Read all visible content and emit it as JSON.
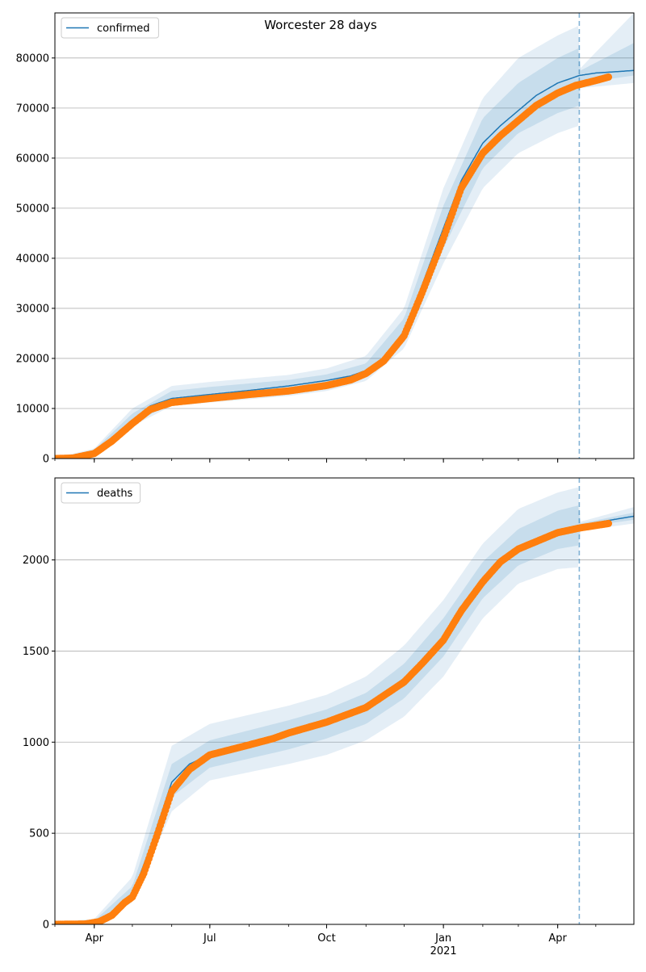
{
  "title": "Worcester 28 days",
  "colors": {
    "fit_line": "#1f77b4",
    "band": "#1f77b4",
    "observed": "#ff7f0e",
    "grid": "#b0b0b0",
    "vline": "#1f77b4"
  },
  "chart_data": [
    {
      "type": "line",
      "panel": "top",
      "legend": {
        "label": "confirmed",
        "placement": "upper-left"
      },
      "x_axis": {
        "min": "2020-03-01",
        "max": "2021-05-31",
        "ticks": [
          "Apr",
          "Jul",
          "Oct",
          "Jan",
          "Apr"
        ],
        "tick_dates": [
          "2020-04-01",
          "2020-07-01",
          "2020-10-01",
          "2021-01-01",
          "2021-04-01"
        ]
      },
      "y_axis": {
        "min": 0,
        "max": 89000,
        "ticks": [
          0,
          10000,
          20000,
          30000,
          40000,
          50000,
          60000,
          70000,
          80000
        ]
      },
      "grid": "y",
      "vline_date": "2021-04-18",
      "fit": [
        [
          "2020-03-01",
          0
        ],
        [
          "2020-03-20",
          500
        ],
        [
          "2020-04-01",
          1400
        ],
        [
          "2020-04-15",
          4000
        ],
        [
          "2020-05-01",
          7500
        ],
        [
          "2020-05-15",
          10500
        ],
        [
          "2020-06-01",
          12000
        ],
        [
          "2020-07-01",
          12800
        ],
        [
          "2020-08-01",
          13600
        ],
        [
          "2020-09-01",
          14500
        ],
        [
          "2020-10-01",
          15600
        ],
        [
          "2020-10-20",
          16500
        ],
        [
          "2020-11-01",
          17600
        ],
        [
          "2020-11-15",
          20000
        ],
        [
          "2020-12-01",
          25500
        ],
        [
          "2020-12-15",
          34500
        ],
        [
          "2021-01-01",
          46000
        ],
        [
          "2021-01-15",
          55500
        ],
        [
          "2021-02-01",
          63000
        ],
        [
          "2021-02-15",
          66500
        ],
        [
          "2021-03-01",
          69500
        ],
        [
          "2021-03-15",
          72500
        ],
        [
          "2021-04-01",
          75000
        ],
        [
          "2021-04-18",
          76500
        ],
        [
          "2021-05-01",
          77000
        ],
        [
          "2021-05-31",
          77500
        ]
      ],
      "band_ranges": {
        "outer_low": [
          [
            "2020-03-01",
            0
          ],
          [
            "2020-04-01",
            1000
          ],
          [
            "2020-05-01",
            6500
          ],
          [
            "2020-06-01",
            10500
          ],
          [
            "2020-07-01",
            11200
          ],
          [
            "2020-09-01",
            12500
          ],
          [
            "2020-10-01",
            13500
          ],
          [
            "2020-11-01",
            15500
          ],
          [
            "2020-12-01",
            22000
          ],
          [
            "2021-01-01",
            39000
          ],
          [
            "2021-02-01",
            54000
          ],
          [
            "2021-03-01",
            61000
          ],
          [
            "2021-04-01",
            65000
          ],
          [
            "2021-04-18",
            66500
          ],
          [
            "2021-04-19",
            74000
          ],
          [
            "2021-05-31",
            75000
          ]
        ],
        "outer_high": [
          [
            "2020-03-01",
            100
          ],
          [
            "2020-04-01",
            2000
          ],
          [
            "2020-05-01",
            10000
          ],
          [
            "2020-06-01",
            14500
          ],
          [
            "2020-07-01",
            15300
          ],
          [
            "2020-09-01",
            16700
          ],
          [
            "2020-10-01",
            18000
          ],
          [
            "2020-11-01",
            20500
          ],
          [
            "2020-12-01",
            30000
          ],
          [
            "2021-01-01",
            54000
          ],
          [
            "2021-02-01",
            72000
          ],
          [
            "2021-03-01",
            80000
          ],
          [
            "2021-04-01",
            84500
          ],
          [
            "2021-04-18",
            86500
          ],
          [
            "2021-04-19",
            78000
          ],
          [
            "2021-05-31",
            89000
          ]
        ],
        "mid_low": [
          [
            "2020-03-01",
            0
          ],
          [
            "2020-04-01",
            1150
          ],
          [
            "2020-05-01",
            7000
          ],
          [
            "2020-06-01",
            11000
          ],
          [
            "2020-07-01",
            11800
          ],
          [
            "2020-09-01",
            13300
          ],
          [
            "2020-10-01",
            14300
          ],
          [
            "2020-11-01",
            16400
          ],
          [
            "2020-12-01",
            23500
          ],
          [
            "2021-01-01",
            42000
          ],
          [
            "2021-02-01",
            58000
          ],
          [
            "2021-03-01",
            65000
          ],
          [
            "2021-04-01",
            69000
          ],
          [
            "2021-04-18",
            70500
          ],
          [
            "2021-04-19",
            75000
          ],
          [
            "2021-05-31",
            76500
          ]
        ],
        "mid_high": [
          [
            "2020-03-01",
            50
          ],
          [
            "2020-04-01",
            1750
          ],
          [
            "2020-05-01",
            9000
          ],
          [
            "2020-06-01",
            13500
          ],
          [
            "2020-07-01",
            14300
          ],
          [
            "2020-09-01",
            15700
          ],
          [
            "2020-10-01",
            16800
          ],
          [
            "2020-11-01",
            19000
          ],
          [
            "2020-12-01",
            28000
          ],
          [
            "2021-01-01",
            50500
          ],
          [
            "2021-02-01",
            68000
          ],
          [
            "2021-03-01",
            75000
          ],
          [
            "2021-04-01",
            80000
          ],
          [
            "2021-04-18",
            82000
          ],
          [
            "2021-04-19",
            77500
          ],
          [
            "2021-05-31",
            83000
          ]
        ]
      },
      "observed_range": {
        "start": "2020-03-01",
        "end": "2021-05-11"
      },
      "observed_anchors": [
        [
          "2020-03-01",
          0
        ],
        [
          "2020-03-15",
          100
        ],
        [
          "2020-04-01",
          1000
        ],
        [
          "2020-04-15",
          3500
        ],
        [
          "2020-05-01",
          7000
        ],
        [
          "2020-05-15",
          9800
        ],
        [
          "2020-06-01",
          11200
        ],
        [
          "2020-07-01",
          12000
        ],
        [
          "2020-08-01",
          12800
        ],
        [
          "2020-09-01",
          13500
        ],
        [
          "2020-10-01",
          14600
        ],
        [
          "2020-10-20",
          15700
        ],
        [
          "2020-11-01",
          17000
        ],
        [
          "2020-11-15",
          19500
        ],
        [
          "2020-12-01",
          24500
        ],
        [
          "2020-12-15",
          33000
        ],
        [
          "2021-01-01",
          44000
        ],
        [
          "2021-01-15",
          54000
        ],
        [
          "2021-02-01",
          61000
        ],
        [
          "2021-02-15",
          64500
        ],
        [
          "2021-03-01",
          67500
        ],
        [
          "2021-03-15",
          70500
        ],
        [
          "2021-04-01",
          73000
        ],
        [
          "2021-04-15",
          74500
        ],
        [
          "2021-05-01",
          75500
        ],
        [
          "2021-05-11",
          76200
        ]
      ]
    },
    {
      "type": "line",
      "panel": "bottom",
      "legend": {
        "label": "deaths",
        "placement": "upper-left"
      },
      "x_axis": {
        "min": "2020-03-01",
        "max": "2021-05-31",
        "ticks": [
          "Apr",
          "Jul",
          "Oct",
          "Jan",
          "Apr"
        ],
        "tick_dates": [
          "2020-04-01",
          "2020-07-01",
          "2020-10-01",
          "2021-01-01",
          "2021-04-01"
        ],
        "year_label": "2021"
      },
      "y_axis": {
        "min": 0,
        "max": 2450,
        "ticks": [
          0,
          500,
          1000,
          1500,
          2000
        ]
      },
      "grid": "y",
      "vline_date": "2021-04-18",
      "fit": [
        [
          "2020-03-01",
          0
        ],
        [
          "2020-04-01",
          10
        ],
        [
          "2020-04-15",
          50
        ],
        [
          "2020-05-01",
          160
        ],
        [
          "2020-05-15",
          420
        ],
        [
          "2020-06-01",
          780
        ],
        [
          "2020-06-15",
          880
        ],
        [
          "2020-07-01",
          930
        ],
        [
          "2020-08-01",
          990
        ],
        [
          "2020-09-01",
          1060
        ],
        [
          "2020-10-01",
          1110
        ],
        [
          "2020-11-01",
          1200
        ],
        [
          "2020-12-01",
          1350
        ],
        [
          "2020-12-15",
          1450
        ],
        [
          "2021-01-01",
          1580
        ],
        [
          "2021-01-15",
          1740
        ],
        [
          "2021-02-01",
          1890
        ],
        [
          "2021-02-15",
          2000
        ],
        [
          "2021-03-01",
          2070
        ],
        [
          "2021-04-01",
          2160
        ],
        [
          "2021-04-18",
          2190
        ],
        [
          "2021-05-31",
          2240
        ]
      ],
      "band_ranges": {
        "outer_low": [
          [
            "2020-03-01",
            0
          ],
          [
            "2020-04-01",
            5
          ],
          [
            "2020-05-01",
            120
          ],
          [
            "2020-06-01",
            620
          ],
          [
            "2020-07-01",
            790
          ],
          [
            "2020-09-01",
            880
          ],
          [
            "2020-10-01",
            930
          ],
          [
            "2020-11-01",
            1010
          ],
          [
            "2020-12-01",
            1140
          ],
          [
            "2021-01-01",
            1360
          ],
          [
            "2021-02-01",
            1680
          ],
          [
            "2021-03-01",
            1870
          ],
          [
            "2021-04-01",
            1950
          ],
          [
            "2021-04-18",
            1960
          ],
          [
            "2021-04-19",
            2160
          ],
          [
            "2021-05-31",
            2200
          ]
        ],
        "outer_high": [
          [
            "2020-03-01",
            10
          ],
          [
            "2020-04-01",
            30
          ],
          [
            "2020-05-01",
            260
          ],
          [
            "2020-06-01",
            980
          ],
          [
            "2020-07-01",
            1100
          ],
          [
            "2020-09-01",
            1200
          ],
          [
            "2020-10-01",
            1260
          ],
          [
            "2020-11-01",
            1360
          ],
          [
            "2020-12-01",
            1530
          ],
          [
            "2021-01-01",
            1780
          ],
          [
            "2021-02-01",
            2090
          ],
          [
            "2021-03-01",
            2280
          ],
          [
            "2021-04-01",
            2370
          ],
          [
            "2021-04-18",
            2400
          ],
          [
            "2021-04-19",
            2210
          ],
          [
            "2021-05-31",
            2290
          ]
        ],
        "mid_low": [
          [
            "2020-03-01",
            0
          ],
          [
            "2020-04-01",
            8
          ],
          [
            "2020-05-01",
            140
          ],
          [
            "2020-06-01",
            700
          ],
          [
            "2020-07-01",
            860
          ],
          [
            "2020-09-01",
            960
          ],
          [
            "2020-10-01",
            1020
          ],
          [
            "2020-11-01",
            1100
          ],
          [
            "2020-12-01",
            1240
          ],
          [
            "2021-01-01",
            1470
          ],
          [
            "2021-02-01",
            1790
          ],
          [
            "2021-03-01",
            1970
          ],
          [
            "2021-04-01",
            2060
          ],
          [
            "2021-04-18",
            2080
          ],
          [
            "2021-04-19",
            2180
          ],
          [
            "2021-05-31",
            2220
          ]
        ],
        "mid_high": [
          [
            "2020-03-01",
            5
          ],
          [
            "2020-04-01",
            20
          ],
          [
            "2020-05-01",
            210
          ],
          [
            "2020-06-01",
            880
          ],
          [
            "2020-07-01",
            1010
          ],
          [
            "2020-09-01",
            1120
          ],
          [
            "2020-10-01",
            1180
          ],
          [
            "2020-11-01",
            1270
          ],
          [
            "2020-12-01",
            1430
          ],
          [
            "2021-01-01",
            1680
          ],
          [
            "2021-02-01",
            1990
          ],
          [
            "2021-03-01",
            2170
          ],
          [
            "2021-04-01",
            2270
          ],
          [
            "2021-04-18",
            2300
          ],
          [
            "2021-04-19",
            2200
          ],
          [
            "2021-05-31",
            2260
          ]
        ]
      },
      "observed_range": {
        "start": "2020-03-01",
        "end": "2021-05-11"
      },
      "observed_anchors": [
        [
          "2020-03-01",
          0
        ],
        [
          "2020-03-25",
          2
        ],
        [
          "2020-04-05",
          15
        ],
        [
          "2020-04-15",
          50
        ],
        [
          "2020-04-25",
          120
        ],
        [
          "2020-05-01",
          150
        ],
        [
          "2020-05-10",
          280
        ],
        [
          "2020-05-20",
          480
        ],
        [
          "2020-06-01",
          730
        ],
        [
          "2020-06-15",
          850
        ],
        [
          "2020-07-01",
          930
        ],
        [
          "2020-08-01",
          985
        ],
        [
          "2020-08-20",
          1020
        ],
        [
          "2020-09-01",
          1050
        ],
        [
          "2020-10-01",
          1110
        ],
        [
          "2020-11-01",
          1190
        ],
        [
          "2020-12-01",
          1330
        ],
        [
          "2020-12-15",
          1430
        ],
        [
          "2021-01-01",
          1560
        ],
        [
          "2021-01-15",
          1720
        ],
        [
          "2021-02-01",
          1880
        ],
        [
          "2021-02-15",
          1990
        ],
        [
          "2021-03-01",
          2060
        ],
        [
          "2021-04-01",
          2150
        ],
        [
          "2021-04-18",
          2175
        ],
        [
          "2021-05-11",
          2200
        ]
      ]
    }
  ]
}
